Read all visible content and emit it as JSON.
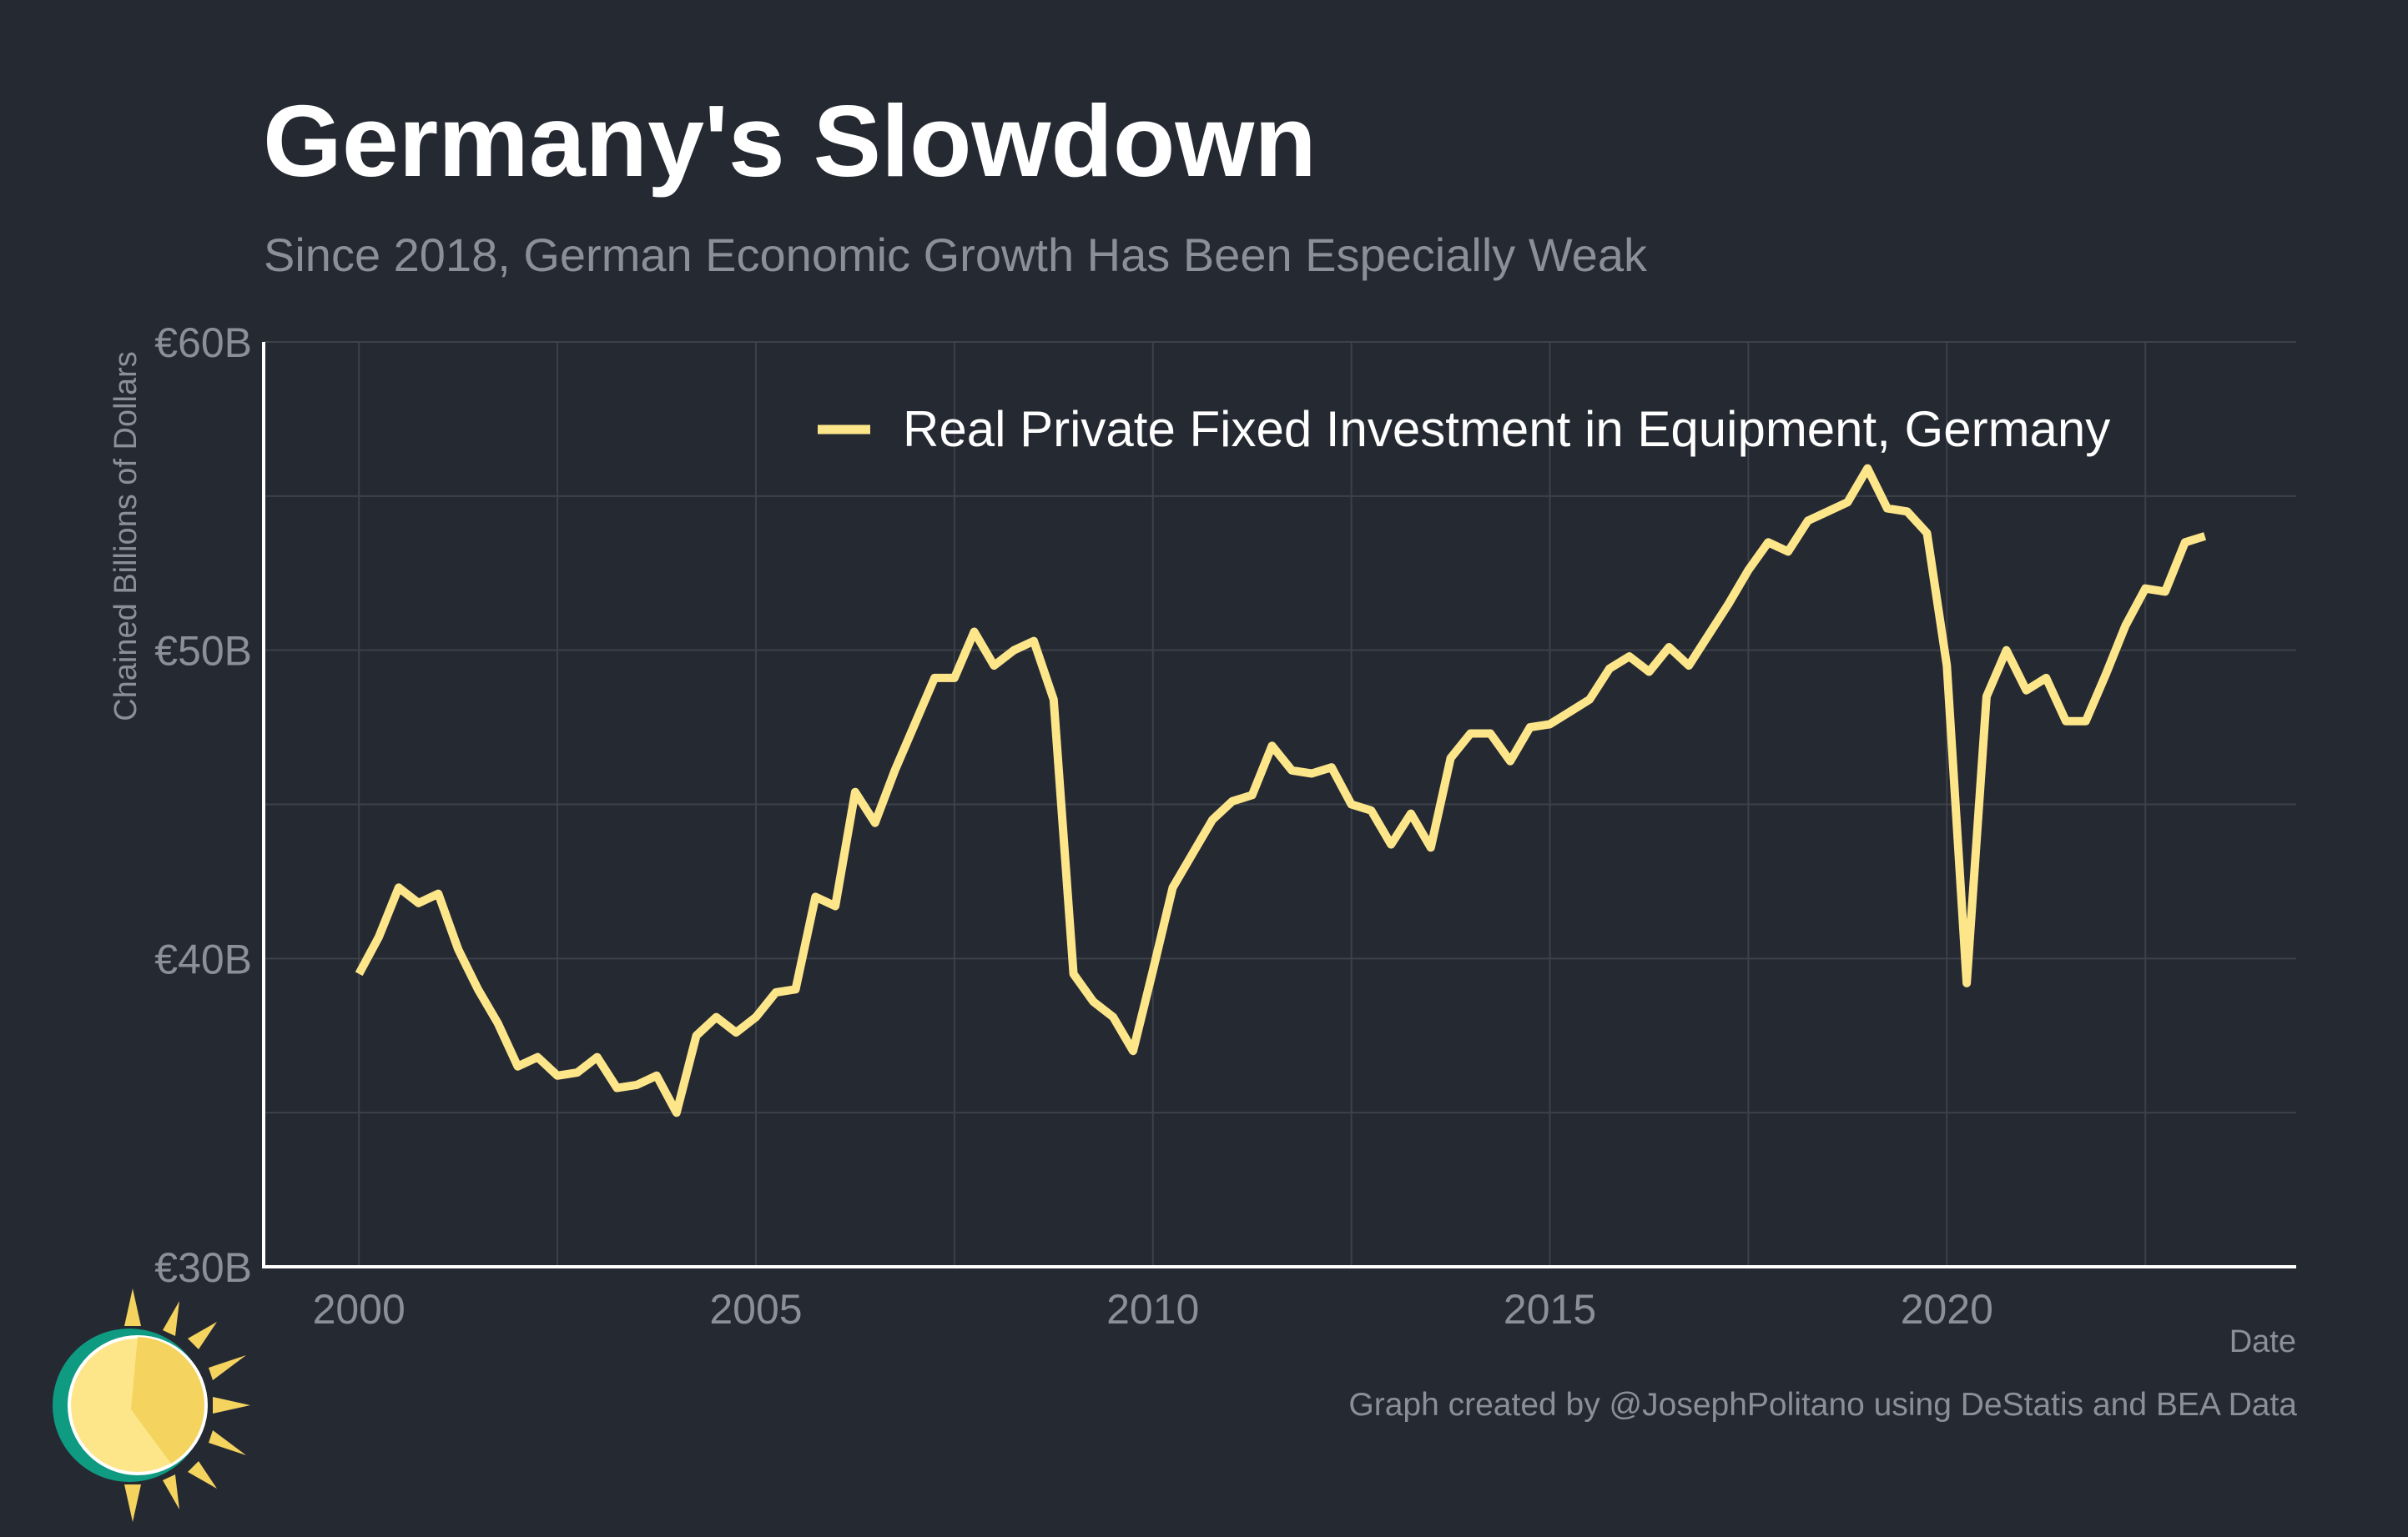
{
  "title": "Germany's Slowdown",
  "subtitle": "Since 2018, German Economic Growth Has Been Especially Weak",
  "caption": "Graph created by @JosephPolitano using DeStatis and BEA Data",
  "colors": {
    "background": "#252932",
    "line": "#fde68a",
    "grid": "#3c414a",
    "axis": "#ffffff",
    "muted_text": "#8b8f97"
  },
  "logo_icon": "sun-logo-icon",
  "chart_data": {
    "type": "line",
    "title": "Germany's Slowdown",
    "subtitle": "Since 2018, German Economic Growth Has Been Especially Weak",
    "xlabel": "Date",
    "ylabel": "Chained Billions of Dollars",
    "xlim": [
      1998.8,
      2024.4
    ],
    "ylim": [
      30,
      60
    ],
    "x_ticks": [
      2000,
      2005,
      2010,
      2015,
      2020
    ],
    "x_tick_labels": [
      "2000",
      "2005",
      "2010",
      "2015",
      "2020"
    ],
    "y_ticks": [
      30,
      40,
      50,
      60
    ],
    "y_tick_labels": [
      "€30B",
      "€40B",
      "€50B",
      "€60B"
    ],
    "grid": true,
    "legend_position": "top-right",
    "series": [
      {
        "name": "Real Private Fixed Investment in Equipment, Germany",
        "color": "#fde68a",
        "x": [
          "2000-Q1",
          "2000-Q2",
          "2000-Q3",
          "2000-Q4",
          "2001-Q1",
          "2001-Q2",
          "2001-Q3",
          "2001-Q4",
          "2002-Q1",
          "2002-Q2",
          "2002-Q3",
          "2002-Q4",
          "2003-Q1",
          "2003-Q2",
          "2003-Q3",
          "2003-Q4",
          "2004-Q1",
          "2004-Q2",
          "2004-Q3",
          "2004-Q4",
          "2005-Q1",
          "2005-Q2",
          "2005-Q3",
          "2005-Q4",
          "2006-Q1",
          "2006-Q2",
          "2006-Q3",
          "2006-Q4",
          "2007-Q1",
          "2007-Q2",
          "2007-Q3",
          "2007-Q4",
          "2008-Q1",
          "2008-Q2",
          "2008-Q3",
          "2008-Q4",
          "2009-Q1",
          "2009-Q2",
          "2009-Q3",
          "2009-Q4",
          "2010-Q1",
          "2010-Q2",
          "2010-Q3",
          "2010-Q4",
          "2011-Q1",
          "2011-Q2",
          "2011-Q3",
          "2011-Q4",
          "2012-Q1",
          "2012-Q2",
          "2012-Q3",
          "2012-Q4",
          "2013-Q1",
          "2013-Q2",
          "2013-Q3",
          "2013-Q4",
          "2014-Q1",
          "2014-Q2",
          "2014-Q3",
          "2014-Q4",
          "2015-Q1",
          "2015-Q2",
          "2015-Q3",
          "2015-Q4",
          "2016-Q1",
          "2016-Q2",
          "2016-Q3",
          "2016-Q4",
          "2017-Q1",
          "2017-Q2",
          "2017-Q3",
          "2017-Q4",
          "2018-Q1",
          "2018-Q2",
          "2018-Q3",
          "2018-Q4",
          "2019-Q1",
          "2019-Q2",
          "2019-Q3",
          "2019-Q4",
          "2020-Q1",
          "2020-Q2",
          "2020-Q3",
          "2020-Q4",
          "2021-Q1",
          "2021-Q2",
          "2021-Q3",
          "2021-Q4",
          "2022-Q1",
          "2022-Q2",
          "2022-Q3",
          "2022-Q4",
          "2023-Q1",
          "2023-Q2"
        ],
        "values": [
          39.5,
          40.7,
          42.3,
          41.8,
          42.1,
          40.3,
          39.0,
          37.9,
          36.5,
          36.8,
          36.2,
          36.3,
          36.8,
          35.8,
          35.9,
          36.2,
          35.0,
          37.5,
          38.1,
          37.6,
          38.1,
          38.9,
          39.0,
          42.0,
          41.7,
          45.4,
          44.4,
          46.1,
          47.6,
          49.1,
          49.1,
          50.6,
          49.5,
          50.0,
          50.3,
          48.4,
          39.5,
          38.6,
          38.1,
          37.0,
          39.6,
          42.3,
          43.4,
          44.5,
          45.1,
          45.3,
          46.9,
          46.1,
          46.0,
          46.2,
          45.0,
          44.8,
          43.7,
          44.7,
          43.6,
          46.5,
          47.3,
          47.3,
          46.4,
          47.5,
          47.6,
          48.0,
          48.4,
          49.4,
          49.8,
          49.3,
          50.1,
          49.5,
          50.5,
          51.5,
          52.6,
          53.5,
          53.2,
          54.2,
          54.5,
          54.8,
          55.9,
          54.6,
          54.5,
          53.8,
          49.5,
          39.2,
          48.5,
          50.0,
          48.7,
          49.1,
          47.7,
          47.7,
          49.2,
          50.8,
          52.0,
          51.9,
          53.5,
          53.7
        ]
      }
    ]
  }
}
